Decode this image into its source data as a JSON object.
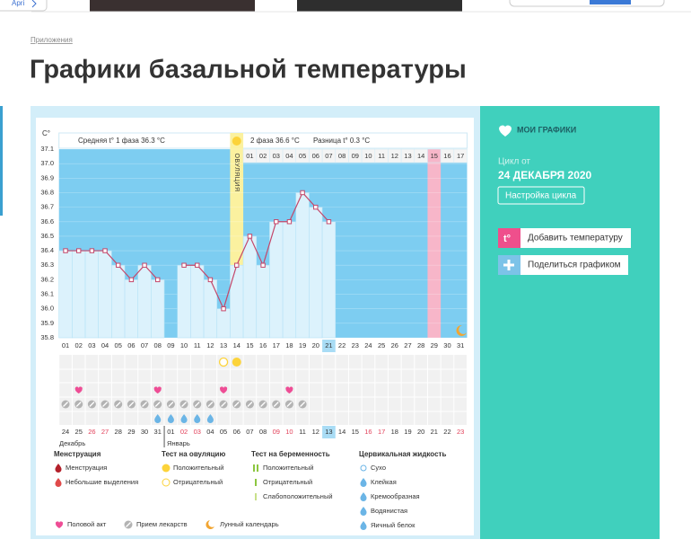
{
  "top_link": "Apri",
  "breadcrumb": "Приложения",
  "title": "Графики базальной температуры",
  "chart_data": {
    "type": "bar",
    "y_label": "C°",
    "phase1_text": "Средняя t° 1 фаза 36.3 °C",
    "phase2_text": "2 фаза 36.6 °C",
    "difference_text": "Разница t° 0.3 °C",
    "ovulation_label": "ОВУЛЯЦИЯ",
    "categories": [
      "01",
      "02",
      "03",
      "04",
      "05",
      "06",
      "07",
      "08",
      "09",
      "10",
      "11",
      "12",
      "13",
      "14",
      "15",
      "16",
      "17",
      "18",
      "19",
      "20",
      "21",
      "22",
      "23",
      "24",
      "25",
      "26",
      "27",
      "28",
      "29",
      "30",
      "31"
    ],
    "values": [
      36.4,
      36.4,
      36.4,
      36.4,
      36.3,
      36.2,
      36.3,
      36.2,
      null,
      36.3,
      36.3,
      36.2,
      36.0,
      36.3,
      36.5,
      36.3,
      36.6,
      36.6,
      36.8,
      36.7,
      36.6,
      null,
      null,
      null,
      null,
      null,
      null,
      null,
      null,
      null,
      null
    ],
    "phase2_days": [
      null,
      null,
      null,
      null,
      null,
      null,
      null,
      null,
      null,
      null,
      null,
      null,
      null,
      null,
      "01",
      "02",
      "03",
      "04",
      "05",
      "06",
      "07",
      "08",
      "09",
      "10",
      "11",
      "12",
      "13",
      "14",
      "15",
      "16",
      "17"
    ],
    "dates": [
      "24",
      "25",
      "26",
      "27",
      "28",
      "29",
      "30",
      "31",
      "01",
      "02",
      "03",
      "04",
      "05",
      "06",
      "07",
      "08",
      "09",
      "10",
      "11",
      "12",
      "13",
      "14",
      "15",
      "16",
      "17",
      "18",
      "19",
      "20",
      "21",
      "22",
      "23"
    ],
    "red_dates": [
      false,
      false,
      true,
      true,
      false,
      false,
      false,
      false,
      false,
      true,
      true,
      false,
      false,
      false,
      false,
      false,
      true,
      true,
      false,
      false,
      false,
      false,
      false,
      true,
      true,
      false,
      false,
      false,
      false,
      false,
      true
    ],
    "months": [
      "Декабрь",
      "Январь"
    ],
    "ovulation_day": "14",
    "pink_day": "29",
    "current_day": "21",
    "sex_days": [
      "02",
      "08",
      "13",
      "18"
    ],
    "pill_days": [
      "01",
      "02",
      "03",
      "04",
      "05",
      "06",
      "07",
      "08",
      "09",
      "10",
      "11",
      "12",
      "13",
      "14",
      "15",
      "16",
      "17",
      "18",
      "19"
    ],
    "fluid_days": [
      "08",
      "09",
      "10",
      "11",
      "12"
    ],
    "ovulation_negative_days": [
      "13"
    ],
    "ovulation_positive_days": [
      "14"
    ],
    "ylim": [
      35.8,
      37.1
    ],
    "yticks": [
      35.8,
      35.9,
      {
        "value": 36,
        "label": "36.0"
      },
      36.1,
      36.2,
      36.3,
      36.4,
      36.5,
      36.6,
      36.7,
      36.8,
      36.9,
      {
        "value": 37,
        "label": "37.0"
      },
      37.1
    ],
    "plot_color": "#7dcdf1",
    "bar_color": "#dcf2fc",
    "line_color": "#c4476a",
    "ovulation_color": "#fbf19f",
    "pink_color": "#f7b6c9",
    "grid": true,
    "legend": [
      {
        "title": "Менструация",
        "items": [
          "Менструация",
          "Небольшие выделения"
        ]
      },
      {
        "title": "Тест на овуляцию",
        "items": [
          "Положительный",
          "Отрицательный"
        ]
      },
      {
        "title": "Тест на беременность",
        "items": [
          "Положительный",
          "Отрицательный",
          "Слабоположительный"
        ]
      },
      {
        "title": "Цервикальная жидкость",
        "items": [
          "Сухо",
          "Клейкая",
          "Кремообразная",
          "Водянистая",
          "Яичный белок"
        ]
      }
    ],
    "extra_legend": [
      "Половой акт",
      "Прием лекарств",
      "Лунный календарь"
    ]
  },
  "panel": {
    "my_charts": "МОИ ГРАФИКИ",
    "cycle_from": "Цикл от",
    "cycle_date": "24 ДЕКАБРЯ 2020",
    "settings": "Настройка цикла",
    "add_temp": "Добавить температуру",
    "share": "Поделиться графиком"
  }
}
